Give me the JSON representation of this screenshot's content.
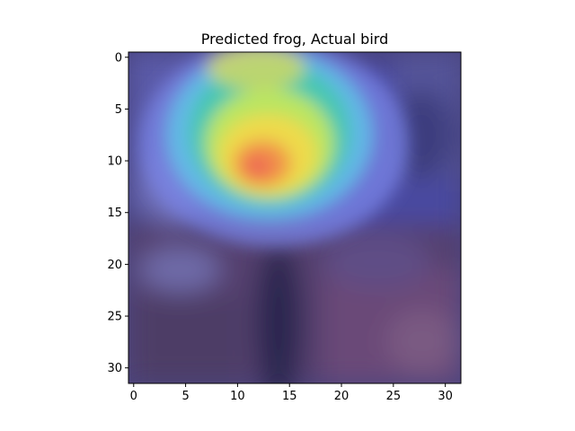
{
  "chart_data": {
    "type": "heatmap",
    "title": "Predicted frog, Actual bird",
    "xlabel": "",
    "ylabel": "",
    "xlim": [
      -0.5,
      31.5
    ],
    "ylim": [
      31.5,
      -0.5
    ],
    "xticks": [
      0,
      5,
      10,
      15,
      20,
      25,
      30
    ],
    "yticks": [
      0,
      5,
      10,
      15,
      20,
      25,
      30
    ],
    "colormap": "jet",
    "grid": false,
    "heat_peak": {
      "x": 12,
      "y": 10,
      "value": 1.0
    },
    "image_size": [
      32,
      32
    ]
  }
}
